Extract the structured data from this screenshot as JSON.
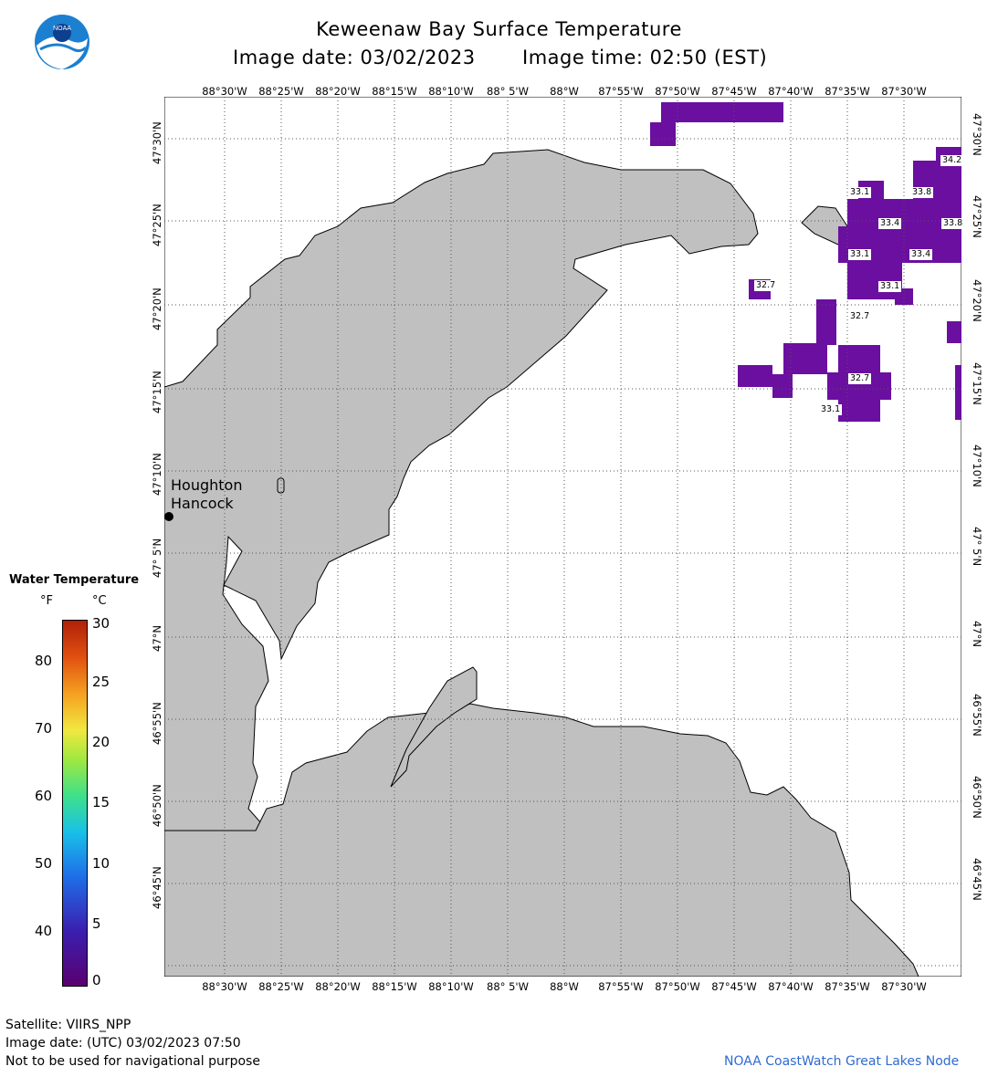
{
  "header": {
    "title": "Keweenaw Bay Surface Temperature",
    "image_date_label": "Image date: 03/02/2023",
    "image_time_label": "Image time: 02:50 (EST)"
  },
  "logo": {
    "text": "NOAA"
  },
  "map": {
    "lon_labels": [
      "88°30'W",
      "88°25'W",
      "88°20'W",
      "88°15'W",
      "88°10'W",
      "88° 5'W",
      "88°W",
      "87°55'W",
      "87°50'W",
      "87°45'W",
      "87°40'W",
      "87°35'W",
      "87°30'W"
    ],
    "lat_labels": [
      "47°30'N",
      "47°25'N",
      "47°20'N",
      "47°15'N",
      "47°10'N",
      "47° 5'N",
      "47°N",
      "46°55'N",
      "46°50'N",
      "46°45'N"
    ],
    "cities": [
      "Houghton",
      "Hancock"
    ],
    "temp_labels": [
      "34.2",
      "33.1",
      "33.8",
      "33.4",
      "33.8",
      "33.1",
      "33.4",
      "32.7",
      "33.1",
      "32.7",
      "32.7",
      "33.1"
    ],
    "colors": {
      "land": "#c0c0c0",
      "water_cold": "#6a0fa0",
      "grid": "#555555"
    }
  },
  "legend": {
    "title": "Water Temperature",
    "unit_f": "°F",
    "unit_c": "°C",
    "f_ticks": [
      "80",
      "70",
      "60",
      "50",
      "40"
    ],
    "c_ticks": [
      "30",
      "25",
      "20",
      "15",
      "10",
      "5",
      "0"
    ]
  },
  "footer": {
    "satellite": "Satellite: VIIRS_NPP",
    "utc_date": "Image date: (UTC) 03/02/2023  07:50",
    "disclaimer": "Not to be used for navigational purpose",
    "credit": "NOAA CoastWatch Great Lakes Node"
  }
}
